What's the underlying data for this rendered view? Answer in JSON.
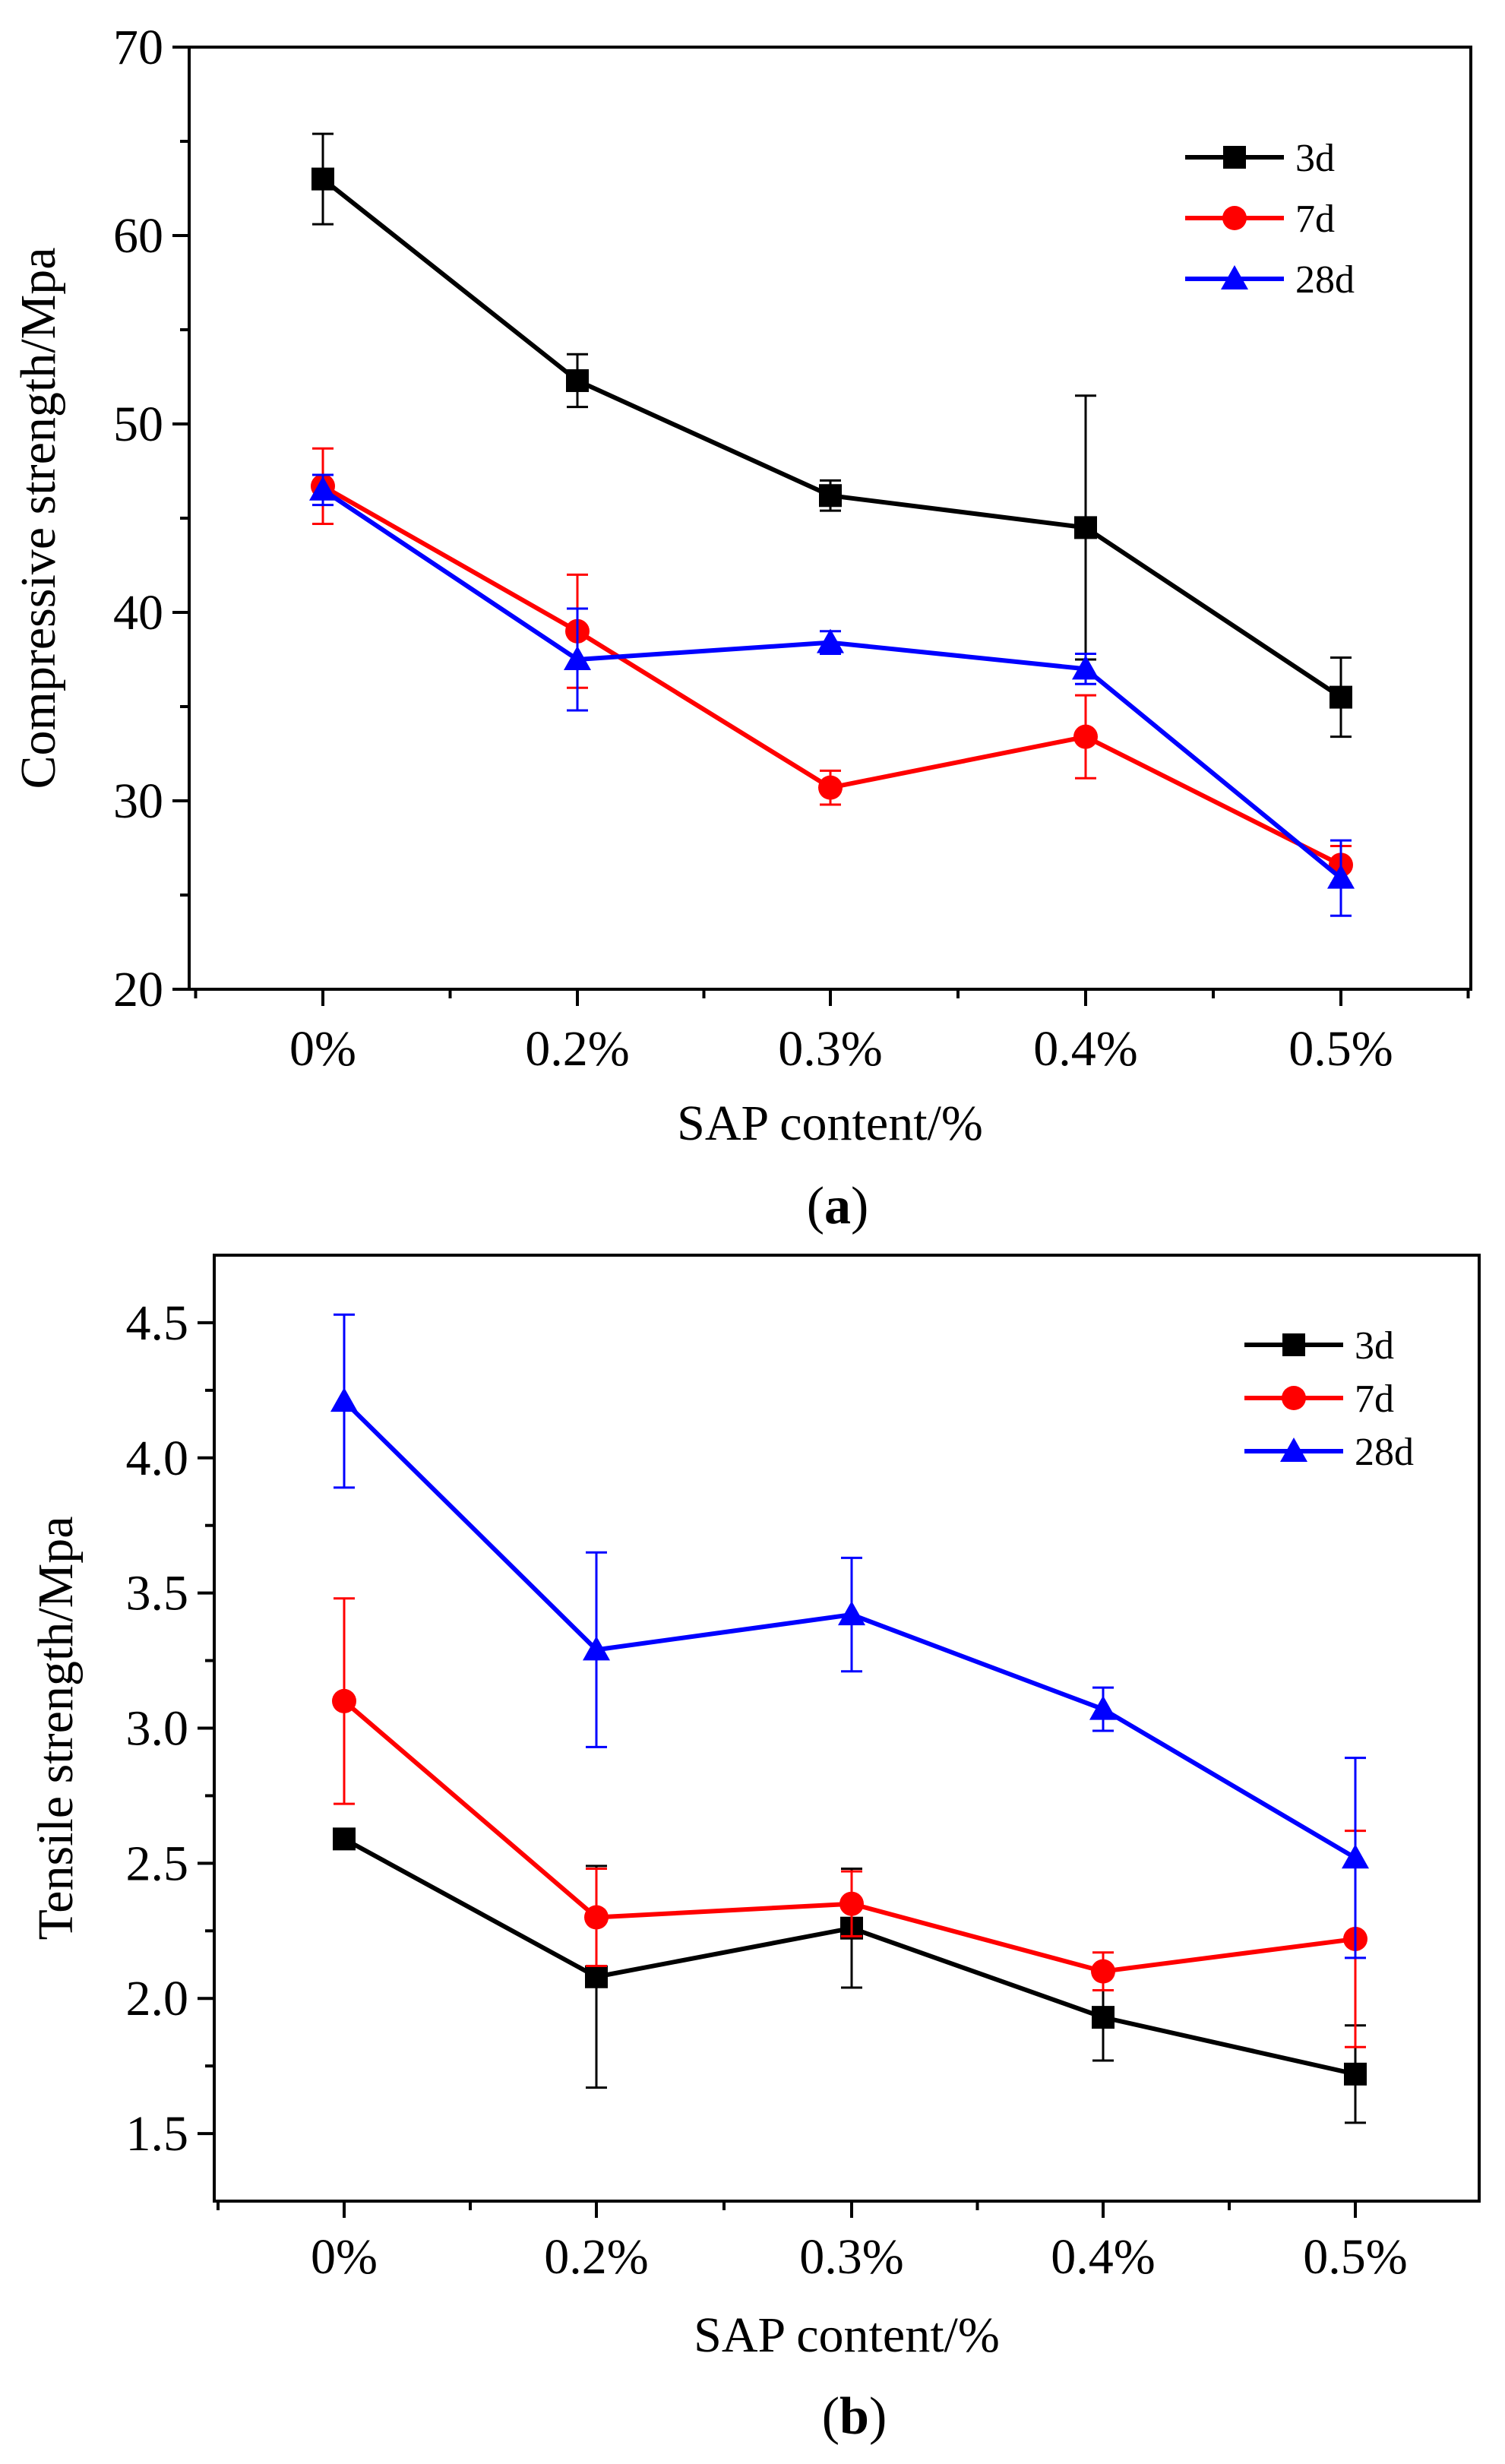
{
  "chart_data": [
    {
      "type": "line",
      "panel_label": "a",
      "title": "",
      "xlabel": "SAP content/%",
      "ylabel": "Compressive strength/Mpa",
      "categories": [
        "0%",
        "0.2%",
        "0.3%",
        "0.4%",
        "0.5%"
      ],
      "ylim": [
        20,
        70
      ],
      "yticks": [
        20,
        30,
        40,
        50,
        60,
        70
      ],
      "yticklabels": [
        "20",
        "30",
        "40",
        "50",
        "60",
        "70"
      ],
      "legend_position": "top-right",
      "series": [
        {
          "name": "3d",
          "color": "#000000",
          "marker": "square",
          "values": [
            63.0,
            52.3,
            46.2,
            44.5,
            35.5
          ],
          "errors": [
            2.4,
            1.4,
            0.8,
            7.0,
            2.1
          ]
        },
        {
          "name": "7d",
          "color": "#ff0000",
          "marker": "circle",
          "values": [
            46.7,
            39.0,
            30.7,
            33.4,
            26.6
          ],
          "errors": [
            2.0,
            3.0,
            0.9,
            2.2,
            1.0
          ]
        },
        {
          "name": "28d",
          "color": "#0000ff",
          "marker": "triangle",
          "values": [
            46.5,
            37.5,
            38.4,
            37.0,
            25.9
          ],
          "errors": [
            0.8,
            2.7,
            0.6,
            0.8,
            2.0
          ]
        }
      ]
    },
    {
      "type": "line",
      "panel_label": "b",
      "title": "",
      "xlabel": "SAP content/%",
      "ylabel": "Tensile strength/Mpa",
      "categories": [
        "0%",
        "0.2%",
        "0.3%",
        "0.4%",
        "0.5%"
      ],
      "ylim": [
        1.25,
        4.75
      ],
      "yticks": [
        1.5,
        2.0,
        2.5,
        3.0,
        3.5,
        4.0,
        4.5
      ],
      "yticklabels": [
        "1.5",
        "2.0",
        "2.5",
        "3.0",
        "3.5",
        "4.0",
        "4.5"
      ],
      "legend_position": "top-right",
      "series": [
        {
          "name": "3d",
          "color": "#000000",
          "marker": "square",
          "values": [
            2.59,
            2.08,
            2.26,
            1.93,
            1.72
          ],
          "errors": [
            0.0,
            0.41,
            0.22,
            0.16,
            0.18
          ]
        },
        {
          "name": "7d",
          "color": "#ff0000",
          "marker": "circle",
          "values": [
            3.1,
            2.3,
            2.35,
            2.1,
            2.22
          ],
          "errors": [
            0.38,
            0.18,
            0.12,
            0.07,
            0.4
          ]
        },
        {
          "name": "28d",
          "color": "#0000ff",
          "marker": "triangle",
          "values": [
            4.21,
            3.29,
            3.42,
            3.07,
            2.52
          ],
          "errors": [
            0.32,
            0.36,
            0.21,
            0.08,
            0.37
          ]
        }
      ]
    }
  ]
}
